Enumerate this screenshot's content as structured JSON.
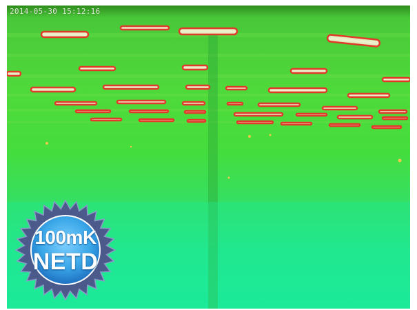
{
  "image": {
    "timestamp": "2014-05-30 15:12:16",
    "badge": {
      "line1": "100mK",
      "line2": "NETD"
    },
    "colors": {
      "hot": "#e23a2a",
      "warm": "#f2c84a",
      "mid": "#4fd93a",
      "cool": "#1cea9a",
      "badge_blue": "#3aa7e8",
      "badge_star": "#4b5a8a"
    }
  }
}
